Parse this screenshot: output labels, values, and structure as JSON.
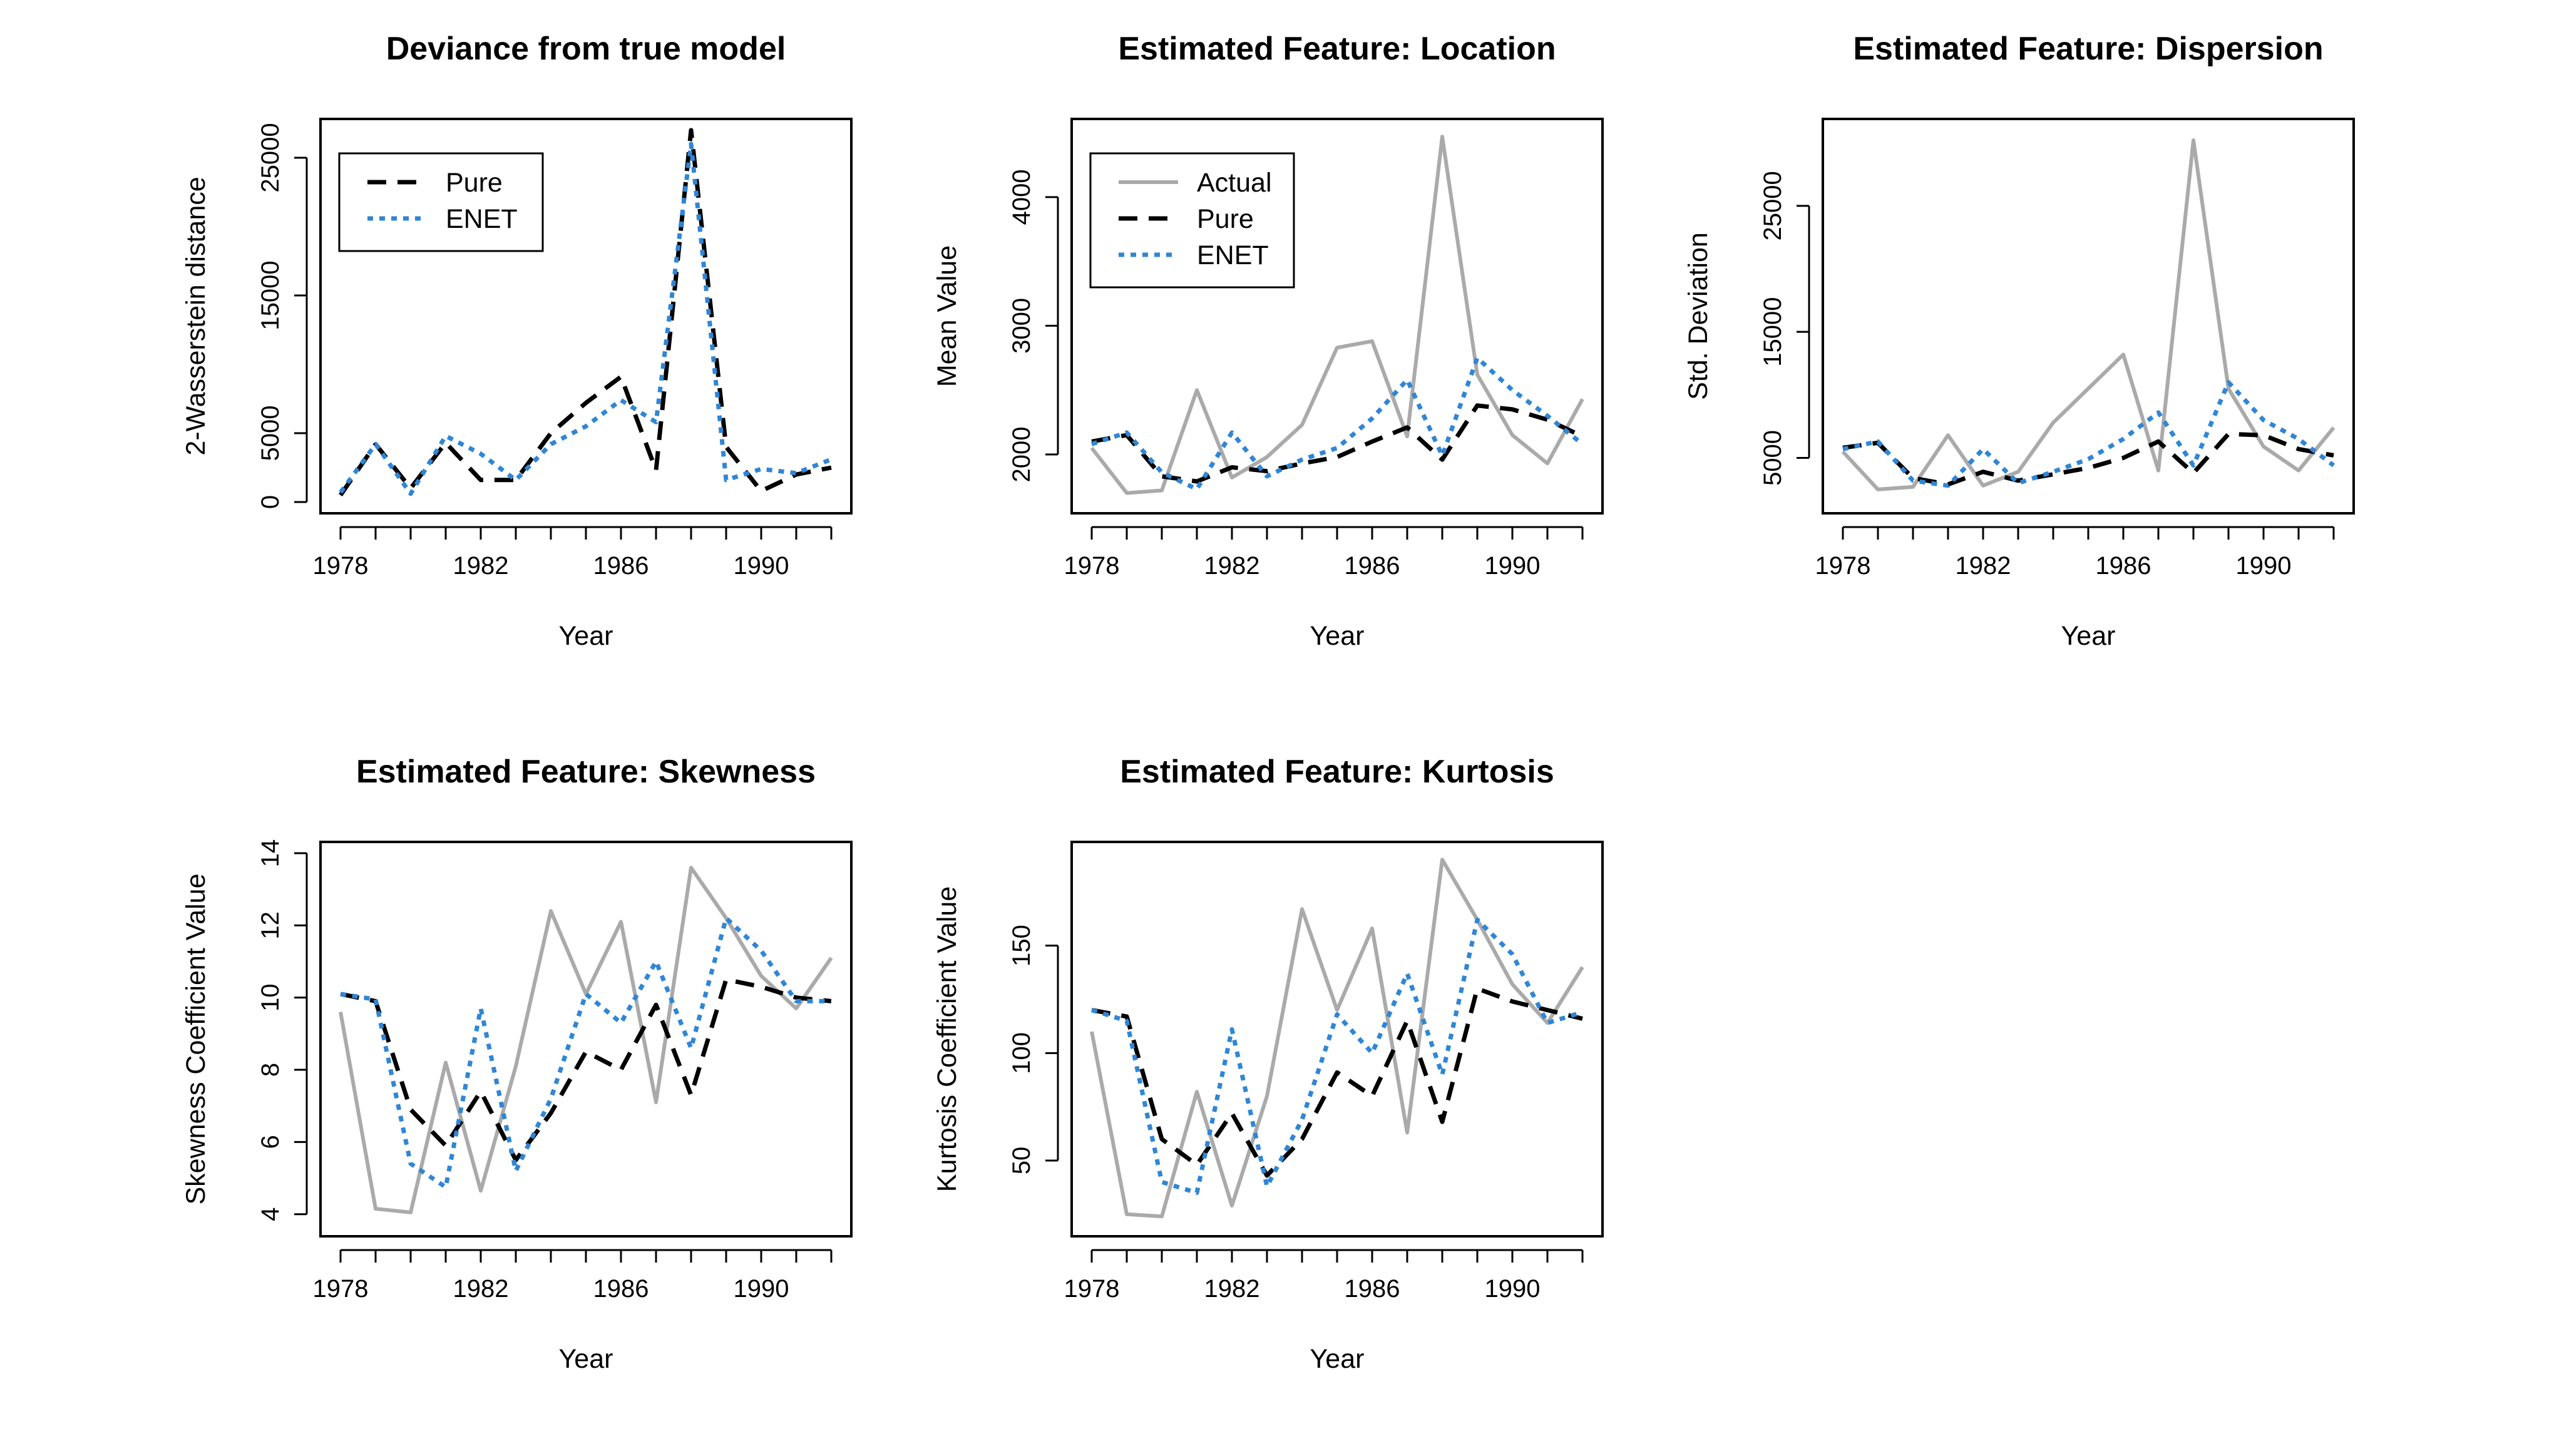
{
  "colors": {
    "actual": "#aaaaaa",
    "pure": "#000000",
    "enet": "#2f86d6"
  },
  "years": [
    1978,
    1979,
    1980,
    1981,
    1982,
    1983,
    1984,
    1985,
    1986,
    1987,
    1988,
    1989,
    1990,
    1991,
    1992
  ],
  "chart_data": [
    {
      "type": "line",
      "title": "Deviance from true model",
      "xlabel": "Year",
      "ylabel": "2-Wasserstein distance",
      "xlim": [
        1978,
        1992
      ],
      "xticks": [
        1978,
        1982,
        1986,
        1990
      ],
      "ylim": [
        0,
        27000
      ],
      "yticks": [
        0,
        5000,
        15000,
        25000
      ],
      "legend": [
        "Pure",
        "ENET"
      ],
      "legend_position": "top-left",
      "series": [
        {
          "name": "Pure",
          "style": "dashed",
          "color": "#000000",
          "values": [
            500,
            4200,
            1000,
            4300,
            1600,
            1600,
            5000,
            7200,
            9100,
            2300,
            27000,
            4000,
            800,
            2000,
            2500
          ]
        },
        {
          "name": "ENET",
          "style": "dotted",
          "color": "#2f86d6",
          "values": [
            700,
            4200,
            600,
            4800,
            3500,
            1600,
            4200,
            5500,
            7400,
            5800,
            26000,
            1600,
            2400,
            2100,
            3100
          ]
        }
      ]
    },
    {
      "type": "line",
      "title": "Estimated Feature: Location",
      "xlabel": "Year",
      "ylabel": "Mean Value",
      "xlim": [
        1978,
        1992
      ],
      "xticks": [
        1978,
        1982,
        1986,
        1990
      ],
      "ylim": [
        1630,
        4520
      ],
      "yticks": [
        2000,
        3000,
        4000
      ],
      "legend": [
        "Actual",
        "Pure",
        "ENET"
      ],
      "legend_position": "top-left",
      "series": [
        {
          "name": "Actual",
          "style": "solid",
          "color": "#aaaaaa",
          "values": [
            2050,
            1700,
            1720,
            2500,
            1820,
            1980,
            2230,
            2830,
            2880,
            2140,
            4470,
            2620,
            2150,
            1930,
            2430
          ]
        },
        {
          "name": "Pure",
          "style": "dashed",
          "color": "#000000",
          "values": [
            2100,
            2150,
            1830,
            1790,
            1900,
            1870,
            1930,
            1980,
            2100,
            2210,
            1960,
            2380,
            2350,
            2270,
            2140
          ]
        },
        {
          "name": "ENET",
          "style": "dotted",
          "color": "#2f86d6",
          "values": [
            2080,
            2170,
            1860,
            1730,
            2170,
            1830,
            1960,
            2050,
            2280,
            2580,
            1990,
            2750,
            2500,
            2300,
            2080
          ]
        }
      ]
    },
    {
      "type": "line",
      "title": "Estimated Feature: Dispersion",
      "xlabel": "Year",
      "ylabel": "Std. Deviation",
      "xlim": [
        1978,
        1992
      ],
      "xticks": [
        1978,
        1982,
        1986,
        1990
      ],
      "ylim": [
        1500,
        31000
      ],
      "yticks": [
        5000,
        15000,
        25000
      ],
      "legend": [],
      "series": [
        {
          "name": "Actual",
          "style": "solid",
          "color": "#aaaaaa",
          "values": [
            5500,
            2500,
            2700,
            6800,
            2800,
            3900,
            7800,
            10500,
            13200,
            4000,
            30200,
            10500,
            5900,
            4000,
            7400
          ]
        },
        {
          "name": "Pure",
          "style": "dashed",
          "color": "#000000",
          "values": [
            5800,
            6200,
            3400,
            2900,
            3900,
            3200,
            3700,
            4200,
            5000,
            6300,
            3800,
            6900,
            6800,
            5700,
            5200
          ]
        },
        {
          "name": "ENET",
          "style": "dotted",
          "color": "#2f86d6",
          "values": [
            5700,
            6300,
            3200,
            2800,
            5700,
            3000,
            3900,
            4900,
            6500,
            8600,
            4400,
            11000,
            8000,
            6500,
            4400
          ]
        }
      ]
    },
    {
      "type": "line",
      "title": "Estimated Feature: Skewness",
      "xlabel": "Year",
      "ylabel": "Skewness Coefficient Value",
      "xlim": [
        1978,
        1992
      ],
      "xticks": [
        1978,
        1982,
        1986,
        1990
      ],
      "ylim": [
        3.7,
        14
      ],
      "yticks": [
        4,
        6,
        8,
        10,
        12,
        14
      ],
      "legend": [],
      "series": [
        {
          "name": "Actual",
          "style": "solid",
          "color": "#aaaaaa",
          "values": [
            9.6,
            4.15,
            4.05,
            8.2,
            4.65,
            8.1,
            12.4,
            10.1,
            12.1,
            7.1,
            13.6,
            12.2,
            10.6,
            9.7,
            11.1
          ]
        },
        {
          "name": "Pure",
          "style": "dashed",
          "color": "#000000",
          "values": [
            10.1,
            9.9,
            6.9,
            5.9,
            7.4,
            5.5,
            6.8,
            8.5,
            8.0,
            9.8,
            7.3,
            10.5,
            10.3,
            10.0,
            9.9
          ]
        },
        {
          "name": "ENET",
          "style": "dotted",
          "color": "#2f86d6",
          "values": [
            10.1,
            9.95,
            5.4,
            4.75,
            9.7,
            5.2,
            7.2,
            10.1,
            9.3,
            11.0,
            8.6,
            12.2,
            11.3,
            9.9,
            9.9
          ]
        }
      ]
    },
    {
      "type": "line",
      "title": "Estimated Feature: Kurtosis",
      "xlabel": "Year",
      "ylabel": "Kurtosis Coefficient Value",
      "xlim": [
        1978,
        1992
      ],
      "xticks": [
        1978,
        1982,
        1986,
        1990
      ],
      "ylim": [
        20,
        193
      ],
      "yticks": [
        50,
        100,
        150
      ],
      "legend": [],
      "series": [
        {
          "name": "Actual",
          "style": "solid",
          "color": "#aaaaaa",
          "values": [
            110,
            25,
            24,
            82,
            29,
            80,
            167,
            120,
            158,
            63,
            190,
            162,
            132,
            114,
            140
          ]
        },
        {
          "name": "Pure",
          "style": "dashed",
          "color": "#000000",
          "values": [
            120,
            117,
            60,
            48,
            72,
            43,
            60,
            91,
            80,
            115,
            68,
            130,
            124,
            120,
            116
          ]
        },
        {
          "name": "ENET",
          "style": "dotted",
          "color": "#2f86d6",
          "values": [
            120,
            115,
            40,
            35,
            111,
            38,
            69,
            118,
            100,
            137,
            90,
            162,
            146,
            114,
            119
          ]
        }
      ]
    }
  ]
}
